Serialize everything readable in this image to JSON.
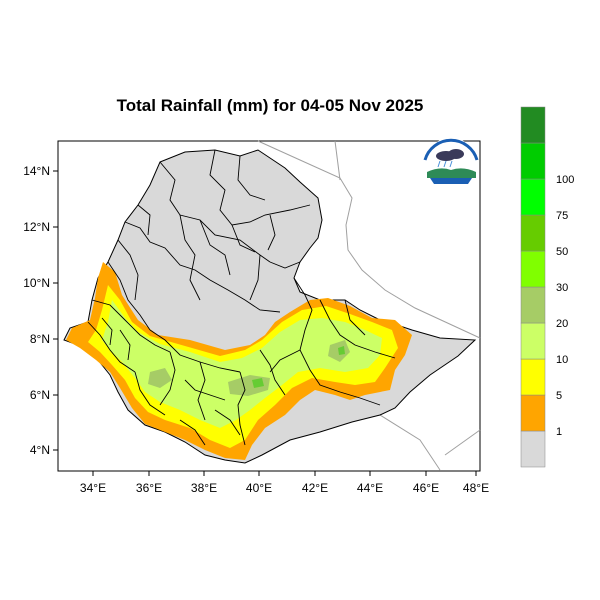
{
  "title": "Total Rainfall (mm) for 04-05 Nov 2025",
  "colors": {
    "land": "#d9d9d9",
    "orange": "#ffa500",
    "yellow": "#ffff00",
    "light_green": "#ccff66",
    "olive_green": "#a6cc66",
    "mid_green": "#66cc33"
  },
  "map": {
    "lon_ticks": [
      "34°E",
      "36°E",
      "38°E",
      "40°E",
      "42°E",
      "44°E",
      "46°E",
      "48°E"
    ],
    "lat_ticks": [
      "14°N",
      "12°N",
      "10°N",
      "8°N",
      "6°N",
      "4°N"
    ],
    "lon_range": [
      32.9,
      48.2
    ],
    "lat_range": [
      3.2,
      15.0
    ]
  },
  "legend": {
    "colors": [
      "#d9d9d9",
      "#ffa500",
      "#ffff00",
      "#ccff66",
      "#a6cc66",
      "#80ff00",
      "#66cc00",
      "#00ff00",
      "#00cc00",
      "#228b22"
    ],
    "labels": [
      "1",
      "5",
      "10",
      "20",
      "30",
      "50",
      "75",
      "100"
    ]
  },
  "logo": {
    "icon": "meteorology-agency-logo"
  }
}
